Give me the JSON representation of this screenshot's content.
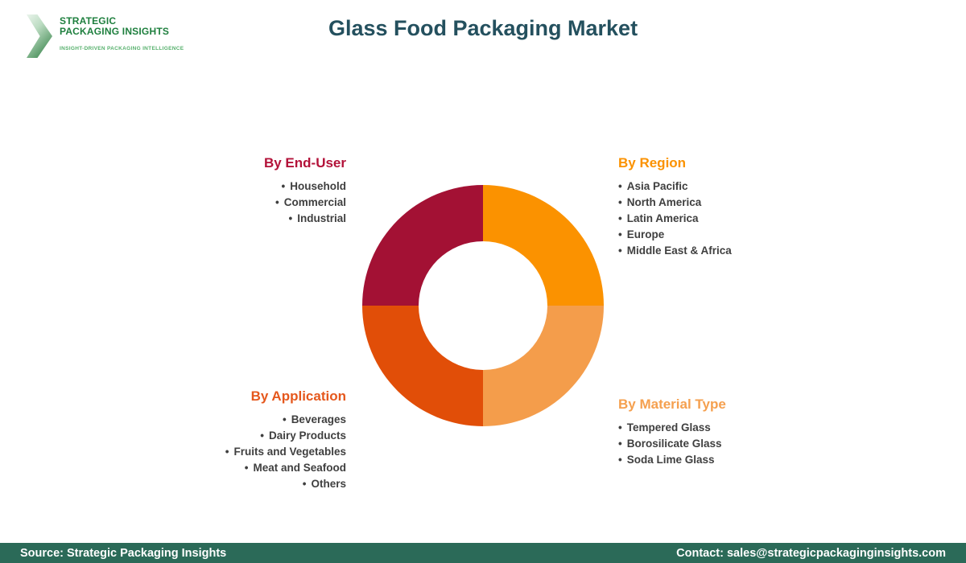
{
  "logo": {
    "line1": "STRATEGIC",
    "line2": "PACKAGING INSIGHTS",
    "tagline": "INSIGHT-DRIVEN PACKAGING INTELLIGENCE",
    "brand_green": "#1e7f3e",
    "tagline_green": "#56b06c"
  },
  "header": {
    "title": "Glass Food Packaging Market",
    "title_color": "#24505e"
  },
  "sections": {
    "end_user": {
      "heading": "By End-User",
      "color": "#b31239",
      "items": [
        "Household",
        "Commercial",
        "Industrial"
      ]
    },
    "region": {
      "heading": "By Region",
      "color": "#fb9200",
      "items": [
        "Asia Pacific",
        "North America",
        "Latin America",
        "Europe",
        "Middle East & Africa"
      ]
    },
    "application": {
      "heading": "By Application",
      "color": "#e5581d",
      "items": [
        "Beverages",
        "Dairy Products",
        "Fruits and Vegetables",
        "Meat and Seafood",
        "Others"
      ]
    },
    "material": {
      "heading": "By Material Type",
      "color": "#f5a04f",
      "items": [
        "Tempered Glass",
        "Borosilicate Glass",
        "Soda Lime Glass"
      ]
    }
  },
  "chart_data": {
    "type": "pie",
    "donut": true,
    "title": "Glass Food Packaging Market segmentation wheel",
    "legend_position": "none",
    "start_angle_deg": 0,
    "inner_radius_ratio": 0.533,
    "segments": [
      {
        "label": "By Region",
        "value": 25,
        "color": "#fb9200"
      },
      {
        "label": "By Material Type",
        "value": 25,
        "color": "#f49d4b"
      },
      {
        "label": "By Application",
        "value": 25,
        "color": "#e14e08"
      },
      {
        "label": "By End-User",
        "value": 25,
        "color": "#a31134"
      }
    ]
  },
  "footer": {
    "background": "#2b6a58",
    "source": "Source: Strategic Packaging Insights",
    "contact": "Contact: sales@strategicpackaginginsights.com"
  }
}
